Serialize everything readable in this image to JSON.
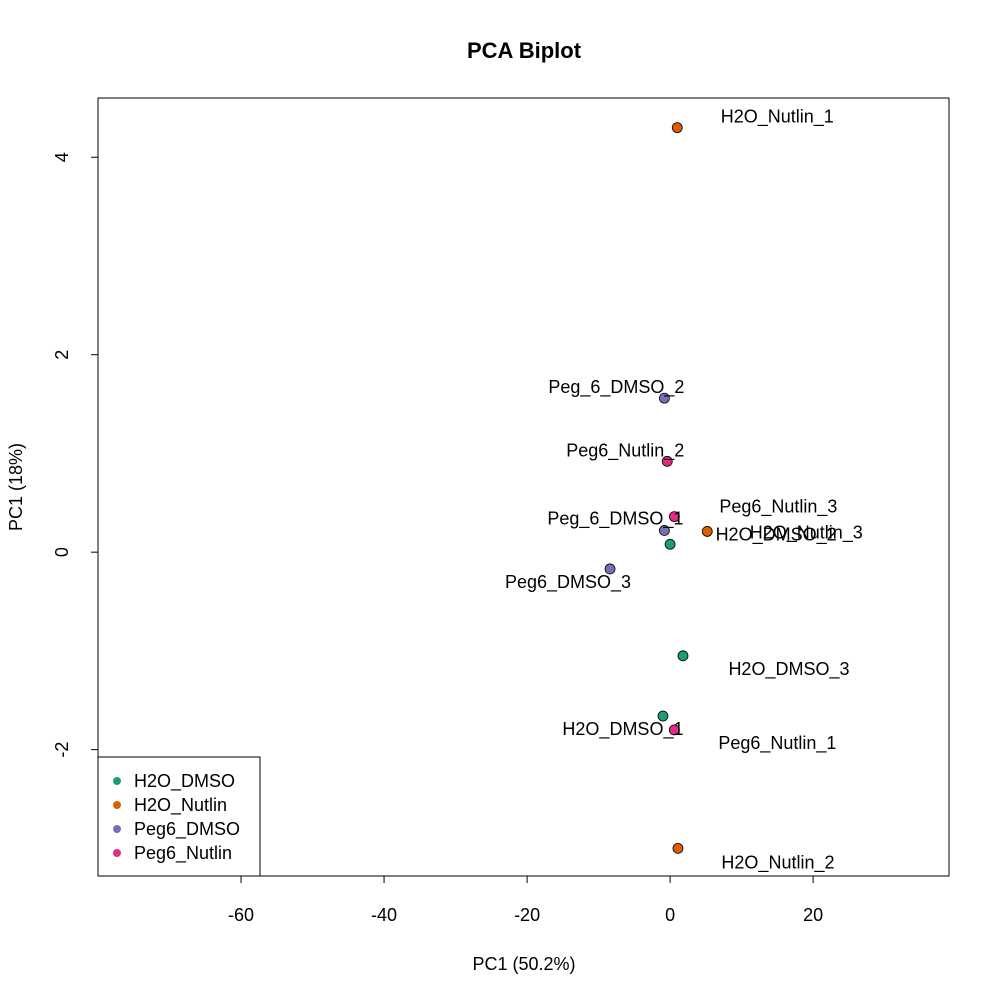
{
  "chart_data": {
    "type": "scatter",
    "title": "PCA Biplot",
    "xlabel": "PC1 (50.2%)",
    "ylabel": "PC1 (18%)",
    "xlim": [
      -80,
      39
    ],
    "ylim": [
      -3.28,
      4.6
    ],
    "x_ticks": [
      -60,
      -40,
      -20,
      0,
      20
    ],
    "y_ticks": [
      -2,
      0,
      2,
      4
    ],
    "grid": false,
    "legend_position": "bottom-left",
    "groups": [
      {
        "name": "H2O_DMSO",
        "color": "#1B9E77"
      },
      {
        "name": "H2O_Nutlin",
        "color": "#D95F02"
      },
      {
        "name": "Peg6_DMSO",
        "color": "#7570B3"
      },
      {
        "name": "Peg6_Nutlin",
        "color": "#E7298A"
      }
    ],
    "points": [
      {
        "label": "H2O_Nutlin_1",
        "group": "H2O_Nutlin",
        "x": 1.0,
        "y": 4.3
      },
      {
        "label": "Peg_6_DMSO_2",
        "group": "Peg6_DMSO",
        "x": -0.8,
        "y": 1.56
      },
      {
        "label": "Peg6_Nutlin_2",
        "group": "Peg6_Nutlin",
        "x": -0.4,
        "y": 0.92
      },
      {
        "label": "Peg6_Nutlin_3",
        "group": "Peg6_Nutlin",
        "x": 0.6,
        "y": 0.36
      },
      {
        "label": "Peg_6_DMSO_1",
        "group": "Peg6_DMSO",
        "x": -0.8,
        "y": 0.22
      },
      {
        "label": "H2O_Nutlin_3",
        "group": "H2O_Nutlin",
        "x": 5.2,
        "y": 0.21
      },
      {
        "label": "H2O_DMSO_2",
        "group": "H2O_DMSO",
        "x": 0.0,
        "y": 0.08
      },
      {
        "label": "Peg6_DMSO_3",
        "group": "Peg6_DMSO",
        "x": -8.4,
        "y": -0.17
      },
      {
        "label": "H2O_DMSO_3",
        "group": "H2O_DMSO",
        "x": 1.8,
        "y": -1.05
      },
      {
        "label": "H2O_DMSO_1",
        "group": "H2O_DMSO",
        "x": -1.0,
        "y": -1.66
      },
      {
        "label": "Peg6_Nutlin_1",
        "group": "Peg6_Nutlin",
        "x": 0.6,
        "y": -1.8
      },
      {
        "label": "H2O_Nutlin_2",
        "group": "H2O_Nutlin",
        "x": 1.1,
        "y": -3.0
      }
    ]
  }
}
